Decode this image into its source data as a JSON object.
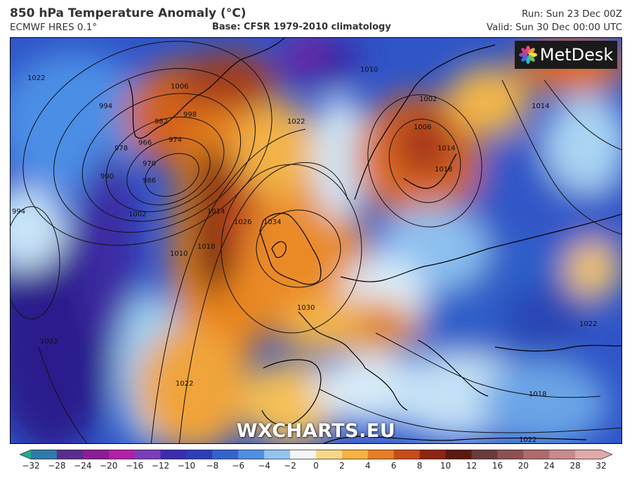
{
  "header": {
    "title": "850 hPa Temperature Anomaly (°C)",
    "model": "ECMWF HRES 0.1°",
    "base": "Base: CFSR 1979-2010 climatology",
    "run": "Run: Sun 23 Dec 00Z",
    "valid": "Valid: Sun 30 Dec 00:00 UTC"
  },
  "logo": {
    "text": "MetDesk",
    "icon": "metdesk-flower-icon"
  },
  "watermark": "WXCHARTS.EU",
  "isobar_labels": [
    "994",
    "1006",
    "998",
    "982",
    "966",
    "974",
    "978",
    "970",
    "986",
    "990",
    "1002",
    "1010",
    "1018",
    "1014",
    "1026",
    "1034",
    "1022",
    "1010",
    "1002",
    "1006",
    "1014",
    "1018",
    "1030",
    "1022",
    "1022",
    "1018",
    "1022",
    "1014",
    "1022",
    "994",
    "1022"
  ],
  "colorbar": {
    "ticks": [
      "−32",
      "−28",
      "−24",
      "−20",
      "−16",
      "−12",
      "−10",
      "−8",
      "−6",
      "−4",
      "−2",
      "0",
      "2",
      "4",
      "6",
      "8",
      "10",
      "12",
      "16",
      "20",
      "24",
      "28",
      "32"
    ],
    "colors": [
      "#1fae8a",
      "#2e7aa8",
      "#5b2d8f",
      "#8a1d94",
      "#b21fa8",
      "#7a3db8",
      "#3b2db0",
      "#2c3fb8",
      "#3563cc",
      "#4f8fe0",
      "#93c4f0",
      "#f4f4f4",
      "#f7d88a",
      "#f5b340",
      "#e77d25",
      "#c84a18",
      "#8f2412",
      "#5b1a10",
      "#6b3a3a",
      "#8e5050",
      "#ad6a6a",
      "#c88a8a",
      "#e0aaaa"
    ]
  }
}
